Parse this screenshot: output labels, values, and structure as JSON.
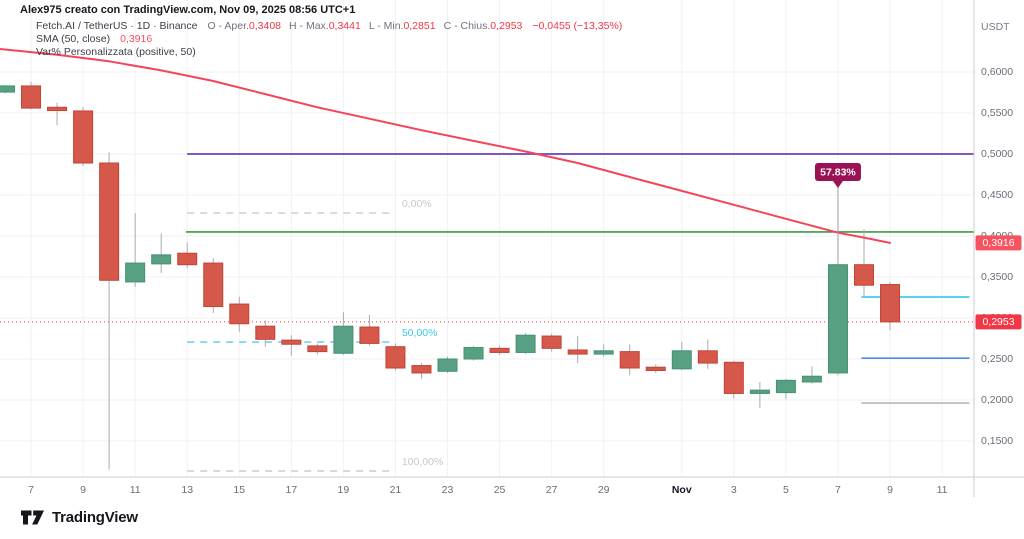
{
  "header": {
    "title": "Alex975 creato con TradingView.com, Nov 09, 2025 08:56 UTC+1",
    "symbol_info": "Fetch.AI / TetherUS · 1D · Binance",
    "ohlc": [
      {
        "label": "O - Aper.",
        "value": "0,3408"
      },
      {
        "label": "H - Max.",
        "value": "0,3441"
      },
      {
        "label": "L - Min.",
        "value": "0,2851"
      },
      {
        "label": "C - Chius.",
        "value": "0,2953"
      }
    ],
    "change": "−0,0455 (−13,35%)",
    "sma": {
      "label": "SMA (50, close)",
      "value": "0,3916"
    },
    "var": {
      "label": "Var% Personalizzata (positive, 50)"
    }
  },
  "axis": {
    "currency": "USDT",
    "price_ticks": [
      {
        "v": 0.6,
        "label": "0,6000"
      },
      {
        "v": 0.55,
        "label": "0,5500"
      },
      {
        "v": 0.5,
        "label": "0,5000"
      },
      {
        "v": 0.45,
        "label": "0,4500"
      },
      {
        "v": 0.4,
        "label": "0,4000"
      },
      {
        "v": 0.35,
        "label": "0,3500"
      },
      {
        "v": 0.3,
        "label": "0,3000"
      },
      {
        "v": 0.25,
        "label": "0,2500"
      },
      {
        "v": 0.2,
        "label": "0,2000"
      },
      {
        "v": 0.15,
        "label": "0,1500"
      }
    ],
    "date_ticks": [
      {
        "i": 1,
        "label": "7"
      },
      {
        "i": 3,
        "label": "9"
      },
      {
        "i": 5,
        "label": "11"
      },
      {
        "i": 7,
        "label": "13"
      },
      {
        "i": 9,
        "label": "15"
      },
      {
        "i": 11,
        "label": "17"
      },
      {
        "i": 13,
        "label": "19"
      },
      {
        "i": 15,
        "label": "21"
      },
      {
        "i": 17,
        "label": "23"
      },
      {
        "i": 19,
        "label": "25"
      },
      {
        "i": 21,
        "label": "27"
      },
      {
        "i": 23,
        "label": "29"
      },
      {
        "i": 26,
        "label": "Nov",
        "emphasis": true
      },
      {
        "i": 28,
        "label": "3"
      },
      {
        "i": 30,
        "label": "5"
      },
      {
        "i": 32,
        "label": "7"
      },
      {
        "i": 34,
        "label": "9"
      },
      {
        "i": 36,
        "label": "11"
      }
    ]
  },
  "chart_data": {
    "type": "candlestick",
    "pair": "Fetch.AI / TetherUS",
    "interval": "1D",
    "exchange": "Binance",
    "ylabel": "USDT",
    "ylim": [
      0.113,
      0.628
    ],
    "candles": [
      [
        0.5755,
        0.584,
        0.574,
        0.583
      ],
      [
        0.583,
        0.588,
        0.5545,
        0.556
      ],
      [
        0.557,
        0.5625,
        0.535,
        0.553
      ],
      [
        0.5525,
        0.557,
        0.485,
        0.489
      ],
      [
        0.489,
        0.502,
        0.115,
        0.346
      ],
      [
        0.344,
        0.428,
        0.338,
        0.367
      ],
      [
        0.366,
        0.403,
        0.355,
        0.377
      ],
      [
        0.379,
        0.392,
        0.361,
        0.365
      ],
      [
        0.367,
        0.373,
        0.306,
        0.314
      ],
      [
        0.317,
        0.326,
        0.283,
        0.293
      ],
      [
        0.29,
        0.297,
        0.265,
        0.274
      ],
      [
        0.273,
        0.279,
        0.254,
        0.268
      ],
      [
        0.266,
        0.269,
        0.2555,
        0.259
      ],
      [
        0.257,
        0.307,
        0.255,
        0.29
      ],
      [
        0.289,
        0.304,
        0.266,
        0.269
      ],
      [
        0.265,
        0.269,
        0.236,
        0.239
      ],
      [
        0.242,
        0.245,
        0.226,
        0.233
      ],
      [
        0.235,
        0.253,
        0.233,
        0.25
      ],
      [
        0.25,
        0.266,
        0.248,
        0.264
      ],
      [
        0.263,
        0.2665,
        0.255,
        0.258
      ],
      [
        0.258,
        0.2815,
        0.256,
        0.279
      ],
      [
        0.278,
        0.281,
        0.259,
        0.263
      ],
      [
        0.261,
        0.278,
        0.245,
        0.256
      ],
      [
        0.256,
        0.268,
        0.253,
        0.26
      ],
      [
        0.259,
        0.268,
        0.23,
        0.239
      ],
      [
        0.24,
        0.2435,
        0.233,
        0.236
      ],
      [
        0.238,
        0.271,
        0.236,
        0.26
      ],
      [
        0.26,
        0.274,
        0.238,
        0.245
      ],
      [
        0.246,
        0.248,
        0.202,
        0.208
      ],
      [
        0.208,
        0.222,
        0.19,
        0.212
      ],
      [
        0.209,
        0.226,
        0.201,
        0.224
      ],
      [
        0.222,
        0.241,
        0.22,
        0.229
      ],
      [
        0.233,
        0.368,
        0.23,
        0.365
      ],
      [
        0.365,
        0.408,
        0.325,
        0.34
      ],
      [
        0.3408,
        0.3441,
        0.2851,
        0.2953
      ]
    ],
    "sma_points": [
      [
        -0.2,
        0.628
      ],
      [
        2,
        0.621
      ],
      [
        4,
        0.613
      ],
      [
        6,
        0.602
      ],
      [
        8,
        0.589
      ],
      [
        10,
        0.573
      ],
      [
        12,
        0.557
      ],
      [
        14,
        0.543
      ],
      [
        16,
        0.529
      ],
      [
        18,
        0.516
      ],
      [
        20,
        0.503
      ],
      [
        22,
        0.489
      ],
      [
        24,
        0.472
      ],
      [
        26,
        0.455
      ],
      [
        28,
        0.438
      ],
      [
        30,
        0.421
      ],
      [
        32,
        0.404
      ],
      [
        33,
        0.398
      ],
      [
        34,
        0.3916
      ]
    ],
    "sma_last": {
      "value": 0.3916,
      "label": "0,3916"
    },
    "last_price": {
      "value": 0.2953,
      "label": "0,2953"
    },
    "var_badge": {
      "text": "57.83%",
      "candle_index": 32,
      "anchor_price": 0.368
    },
    "fib": {
      "from_i": 7.0,
      "to_i": 14.9,
      "levels": [
        {
          "label": "0,00%",
          "price": 0.428,
          "style": "gray"
        },
        {
          "label": "50,00%",
          "price": 0.2707,
          "style": "cyan"
        },
        {
          "label": "100,00%",
          "price": 0.1134,
          "style": "gray"
        }
      ]
    },
    "levels": [
      {
        "name": "purple-level",
        "price": 0.5,
        "from_i": 7.0,
        "to_axis": true,
        "color": "#7e57c2",
        "width": 2
      },
      {
        "name": "green-level",
        "price": 0.4049,
        "from_i": 6.95,
        "to_axis": true,
        "color": "#3f9a43",
        "width": 1.6
      },
      {
        "name": "cyan-level",
        "price": 0.3256,
        "from_i": 32.9,
        "to_i": 37.05,
        "color": "#25c4ec",
        "width": 1.6
      },
      {
        "name": "blue-level",
        "price": 0.251,
        "from_i": 32.9,
        "to_i": 37.05,
        "color": "#4a90d9",
        "width": 1.6
      },
      {
        "name": "gray-level",
        "price": 0.1963,
        "from_i": 32.9,
        "to_i": 37.05,
        "color": "#b4b7be",
        "width": 1.6
      }
    ]
  },
  "colors": {
    "up": "#57a083",
    "up_border": "#43926f",
    "down": "#d5584a",
    "down_border": "#c04537",
    "wick": "#a8abb3",
    "sma": "#f4445a",
    "last_price": "#f23645",
    "sma_chip": "#f7525f",
    "badge_bg": "#9a1253",
    "fib_gray": "#c9cbd1",
    "fib_gray_text": "#c6c8ce",
    "fib_cyan": "#56c9ed",
    "fib_cyan_text": "#3fc6ec",
    "grid": "#f0f2f6",
    "axis_border": "#ccced6",
    "tick_text": "#6a6e78",
    "month_text": "#131722"
  },
  "logo": {
    "text": "TradingView"
  }
}
